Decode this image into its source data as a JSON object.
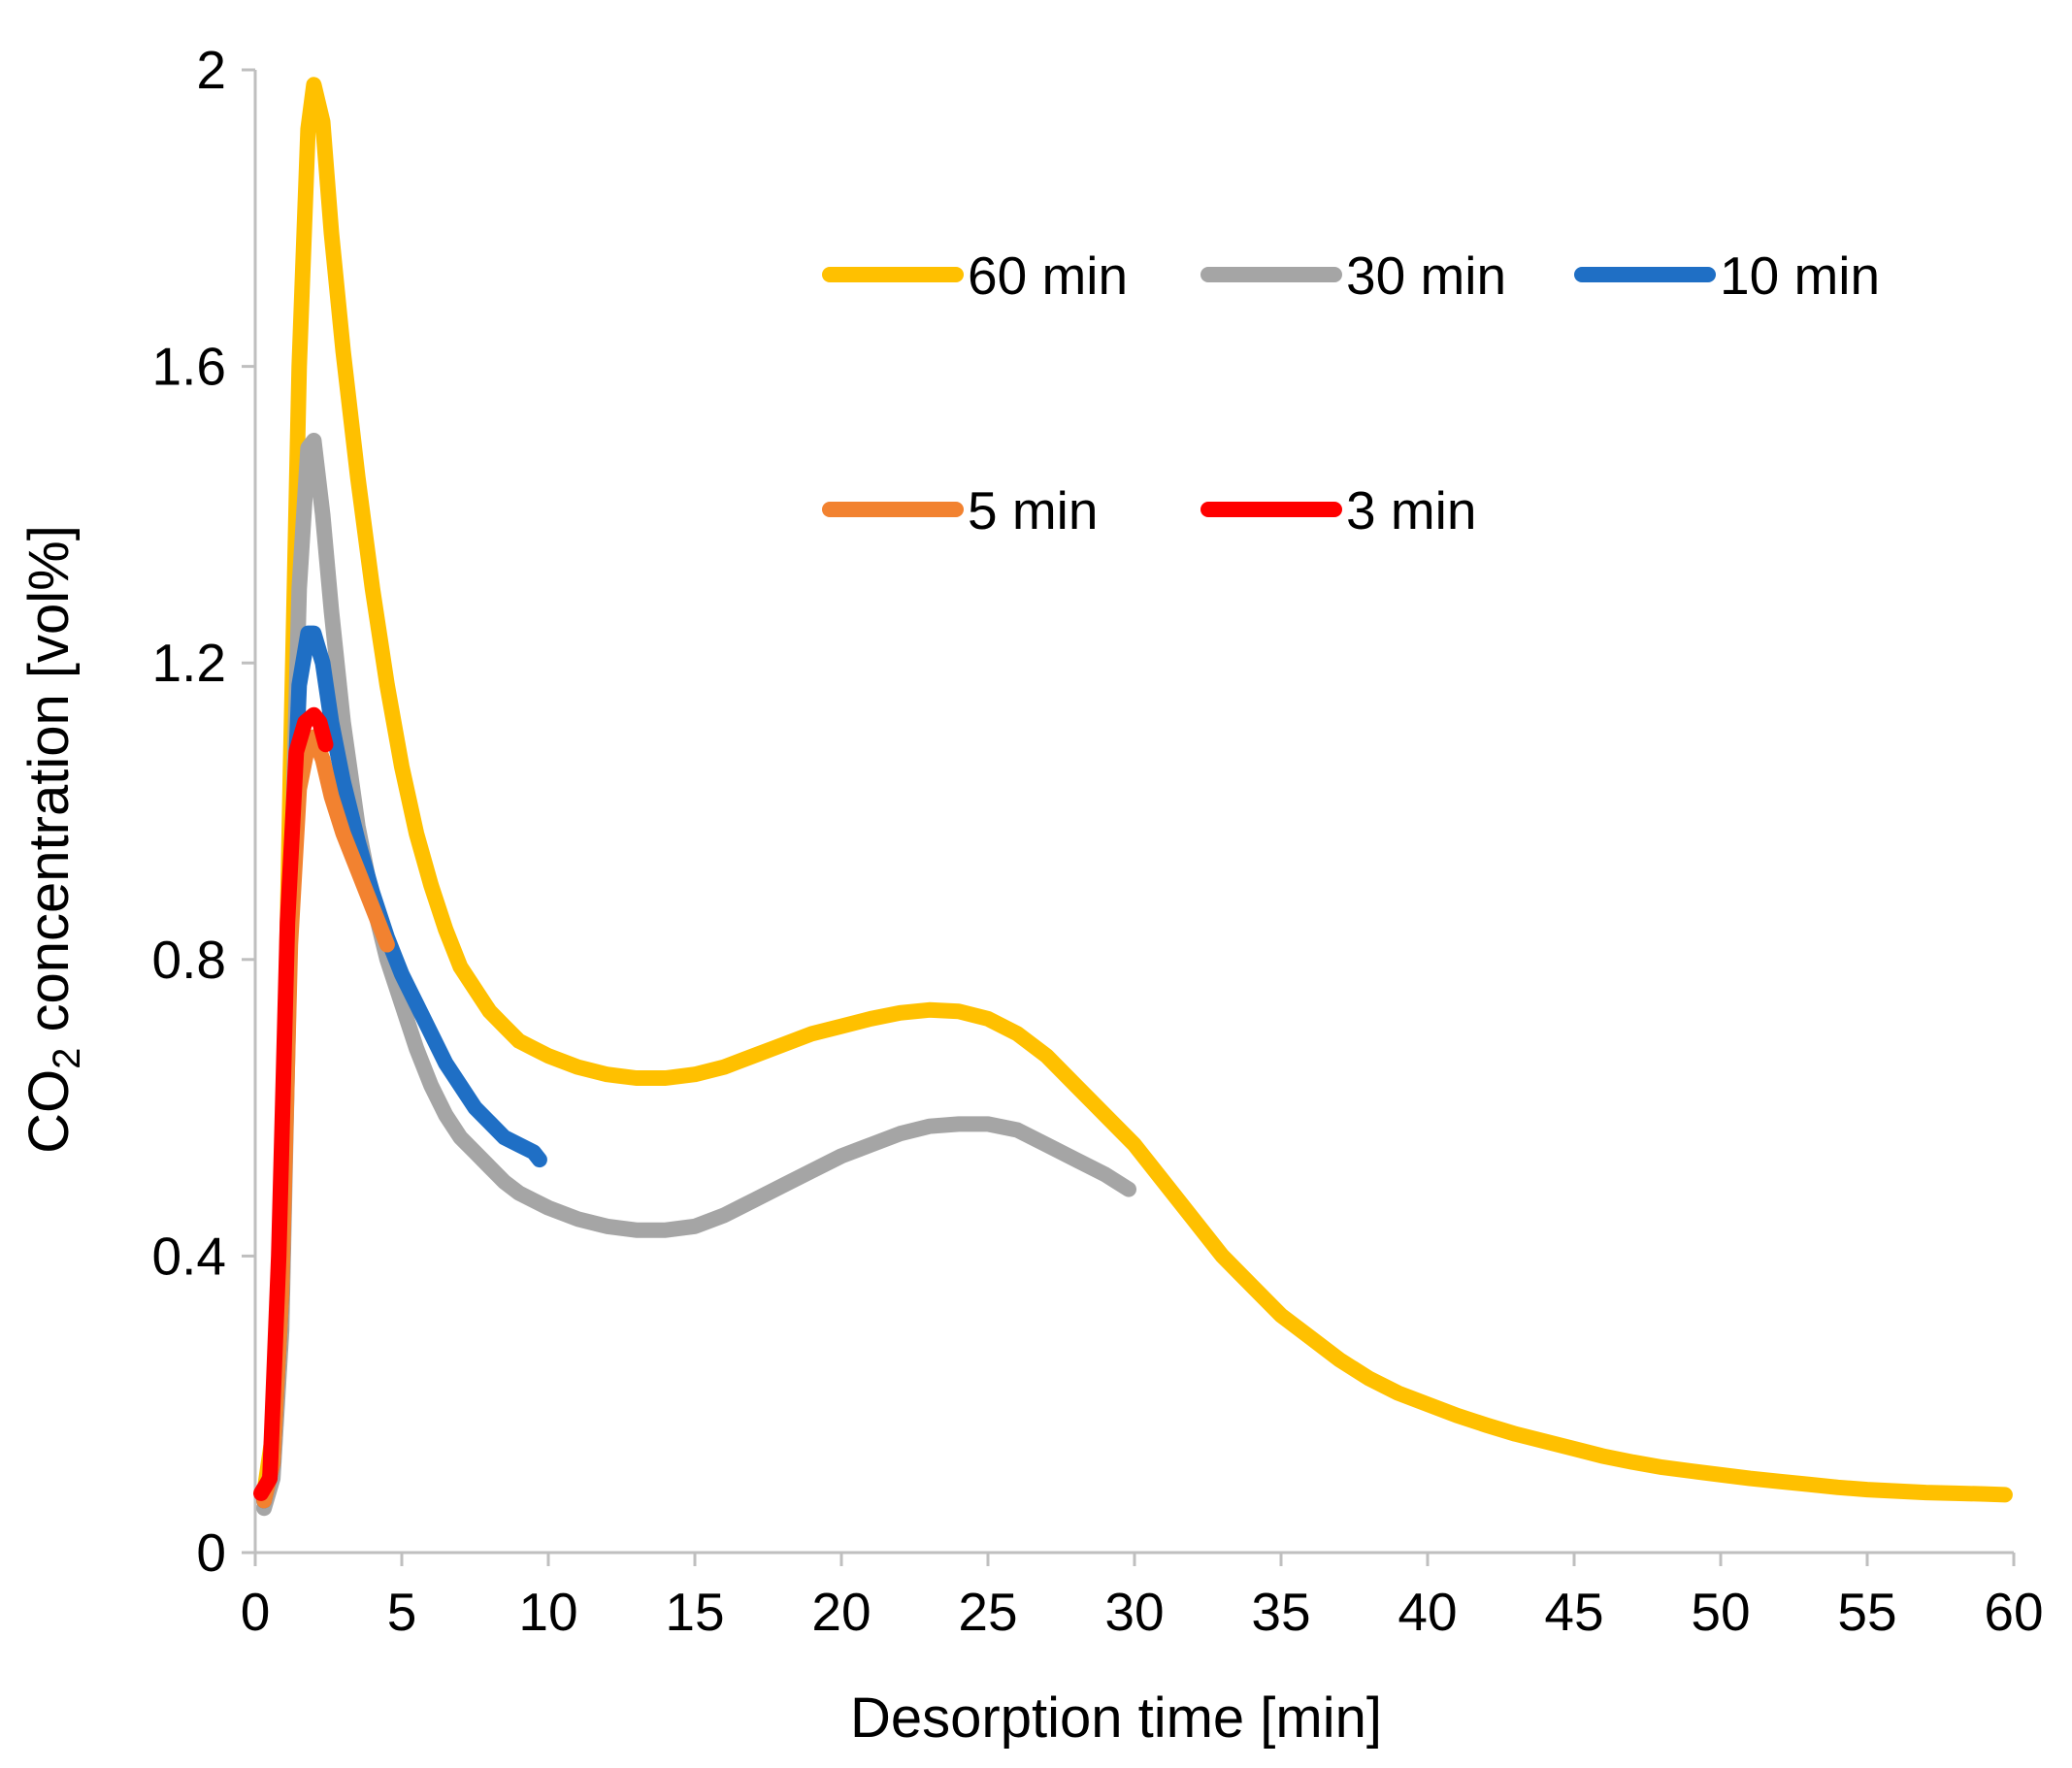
{
  "chart_data": {
    "type": "line",
    "title": "",
    "xlabel": "Desorption time [min]",
    "ylabel": {
      "prefix": "CO",
      "subscript": "2",
      "suffix": " concentration [vol%]"
    },
    "xlim": [
      0,
      60
    ],
    "ylim": [
      0,
      2
    ],
    "xticks": [
      0,
      5,
      10,
      15,
      20,
      25,
      30,
      35,
      40,
      45,
      50,
      55,
      60
    ],
    "yticks": [
      0,
      0.4,
      0.8,
      1.2,
      1.6,
      2
    ],
    "xtick_labels": [
      "0",
      "5",
      "10",
      "15",
      "20",
      "25",
      "30",
      "35",
      "40",
      "45",
      "50",
      "55",
      "60"
    ],
    "ytick_labels": [
      "0",
      "0.4",
      "0.8",
      "1.2",
      "1.6",
      "2"
    ],
    "grid": false,
    "legend": {
      "position": "top-right",
      "rows": [
        [
          "60 min",
          "30 min",
          "10 min"
        ],
        [
          "5 min",
          "3 min"
        ]
      ]
    },
    "series": [
      {
        "name": "60 min",
        "color": "#FFC000",
        "x": [
          0.3,
          0.6,
          0.9,
          1.2,
          1.5,
          1.8,
          2.0,
          2.3,
          2.6,
          3.0,
          3.5,
          4.0,
          4.5,
          5.0,
          5.5,
          6.0,
          6.5,
          7.0,
          7.5,
          8.0,
          8.5,
          9.0,
          9.5,
          10.0,
          11.0,
          12.0,
          13.0,
          14.0,
          15.0,
          16.0,
          17.0,
          18.0,
          19.0,
          20.0,
          21.0,
          22.0,
          23.0,
          24.0,
          25.0,
          26.0,
          27.0,
          28.0,
          29.0,
          30.0,
          31.0,
          32.0,
          33.0,
          34.0,
          35.0,
          36.0,
          37.0,
          38.0,
          39.0,
          40.0,
          41.0,
          42.0,
          43.0,
          44.0,
          45.0,
          46.0,
          47.0,
          48.0,
          49.0,
          50.0,
          51.0,
          52.0,
          53.0,
          54.0,
          55.0,
          56.0,
          57.0,
          58.0,
          59.0,
          59.7
        ],
        "y": [
          0.08,
          0.16,
          0.45,
          1.05,
          1.6,
          1.92,
          1.98,
          1.93,
          1.78,
          1.62,
          1.45,
          1.3,
          1.17,
          1.06,
          0.97,
          0.9,
          0.84,
          0.79,
          0.76,
          0.73,
          0.71,
          0.69,
          0.68,
          0.67,
          0.655,
          0.645,
          0.64,
          0.64,
          0.645,
          0.655,
          0.67,
          0.685,
          0.7,
          0.71,
          0.72,
          0.728,
          0.732,
          0.73,
          0.72,
          0.7,
          0.67,
          0.63,
          0.59,
          0.55,
          0.5,
          0.45,
          0.4,
          0.36,
          0.32,
          0.29,
          0.26,
          0.235,
          0.215,
          0.2,
          0.185,
          0.172,
          0.16,
          0.15,
          0.14,
          0.13,
          0.122,
          0.115,
          0.11,
          0.105,
          0.1,
          0.096,
          0.092,
          0.088,
          0.085,
          0.083,
          0.081,
          0.08,
          0.079,
          0.078
        ]
      },
      {
        "name": "30 min",
        "color": "#A5A5A5",
        "x": [
          0.3,
          0.6,
          0.9,
          1.2,
          1.5,
          1.8,
          2.0,
          2.3,
          2.6,
          3.0,
          3.5,
          4.0,
          4.5,
          5.0,
          5.5,
          6.0,
          6.5,
          7.0,
          7.5,
          8.0,
          8.5,
          9.0,
          9.5,
          10.0,
          11.0,
          12.0,
          13.0,
          14.0,
          15.0,
          16.0,
          17.0,
          18.0,
          19.0,
          20.0,
          21.0,
          22.0,
          23.0,
          24.0,
          25.0,
          26.0,
          27.0,
          28.0,
          29.0,
          29.8
        ],
        "y": [
          0.06,
          0.1,
          0.3,
          0.85,
          1.3,
          1.49,
          1.5,
          1.4,
          1.27,
          1.12,
          0.98,
          0.88,
          0.8,
          0.74,
          0.68,
          0.63,
          0.59,
          0.56,
          0.54,
          0.52,
          0.5,
          0.485,
          0.475,
          0.465,
          0.45,
          0.44,
          0.435,
          0.435,
          0.44,
          0.455,
          0.475,
          0.495,
          0.515,
          0.535,
          0.55,
          0.565,
          0.575,
          0.578,
          0.578,
          0.57,
          0.55,
          0.53,
          0.51,
          0.49
        ]
      },
      {
        "name": "10 min",
        "color": "#1F6FC5",
        "x": [
          0.3,
          0.6,
          0.9,
          1.2,
          1.5,
          1.8,
          2.0,
          2.3,
          2.6,
          3.0,
          3.5,
          4.0,
          4.5,
          5.0,
          5.5,
          6.0,
          6.5,
          7.0,
          7.5,
          8.0,
          8.5,
          9.0,
          9.5,
          9.7
        ],
        "y": [
          0.07,
          0.12,
          0.35,
          0.88,
          1.17,
          1.24,
          1.24,
          1.2,
          1.12,
          1.04,
          0.96,
          0.89,
          0.83,
          0.78,
          0.74,
          0.7,
          0.66,
          0.63,
          0.6,
          0.58,
          0.56,
          0.55,
          0.54,
          0.53
        ]
      },
      {
        "name": "5 min",
        "color": "#F28230",
        "x": [
          0.3,
          0.6,
          0.9,
          1.2,
          1.5,
          1.8,
          2.0,
          2.3,
          2.6,
          3.0,
          3.5,
          4.0,
          4.5
        ],
        "y": [
          0.07,
          0.12,
          0.35,
          0.82,
          1.03,
          1.09,
          1.1,
          1.07,
          1.02,
          0.97,
          0.92,
          0.87,
          0.82
        ]
      },
      {
        "name": "3 min",
        "color": "#FF0000",
        "x": [
          0.2,
          0.5,
          0.8,
          1.1,
          1.4,
          1.7,
          2.0,
          2.2,
          2.4
        ],
        "y": [
          0.08,
          0.1,
          0.4,
          0.85,
          1.08,
          1.12,
          1.13,
          1.12,
          1.09
        ]
      }
    ]
  }
}
